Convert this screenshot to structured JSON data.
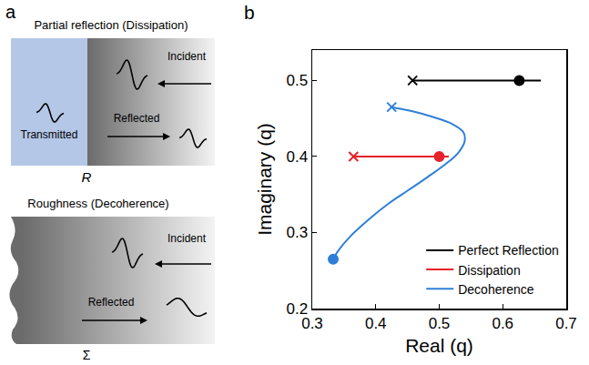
{
  "diagram": {
    "panel_label": "a",
    "top": {
      "title": "Partial reflection (Dissipation)",
      "transmitted": "Transmitted",
      "incident": "Incident",
      "reflected": "Reflected",
      "symbol": "R"
    },
    "bottom": {
      "title": "Roughness (Decoherence)",
      "incident": "Incident",
      "reflected": "Reflected",
      "symbol": "Σ"
    }
  },
  "chart_data": {
    "type": "line",
    "panel_label": "b",
    "xlabel": "Real (q)",
    "ylabel": "Imaginary (q)",
    "xlim": [
      0.3,
      0.7
    ],
    "ylim": [
      0.2,
      0.54
    ],
    "xticks": [
      0.3,
      0.4,
      0.5,
      0.6,
      0.7
    ],
    "yticks": [
      0.2,
      0.3,
      0.4,
      0.5
    ],
    "grid": false,
    "legend": "lower right",
    "series": [
      {
        "name": "Perfect Reflection",
        "color": "#000000",
        "x": [
          0.458,
          0.66
        ],
        "values": [
          0.5,
          0.5
        ],
        "points": [
          {
            "x": 0.458,
            "y": 0.5,
            "marker": "x"
          },
          {
            "x": 0.626,
            "y": 0.5,
            "marker": "circle"
          }
        ]
      },
      {
        "name": "Dissipation",
        "color": "#e8212b",
        "x": [
          0.365,
          0.515
        ],
        "values": [
          0.4,
          0.4
        ],
        "points": [
          {
            "x": 0.365,
            "y": 0.4,
            "marker": "x"
          },
          {
            "x": 0.5,
            "y": 0.4,
            "marker": "circle"
          }
        ]
      },
      {
        "name": "Decoherence",
        "color": "#2f7fd9",
        "x": [
          0.333,
          0.34,
          0.36,
          0.39,
          0.42,
          0.45,
          0.48,
          0.51,
          0.53,
          0.54,
          0.538,
          0.52,
          0.49,
          0.455,
          0.425
        ],
        "values": [
          0.265,
          0.275,
          0.295,
          0.318,
          0.338,
          0.355,
          0.372,
          0.39,
          0.405,
          0.42,
          0.432,
          0.443,
          0.452,
          0.46,
          0.465
        ],
        "points": [
          {
            "x": 0.425,
            "y": 0.465,
            "marker": "x"
          },
          {
            "x": 0.333,
            "y": 0.265,
            "marker": "circle"
          }
        ]
      }
    ]
  }
}
